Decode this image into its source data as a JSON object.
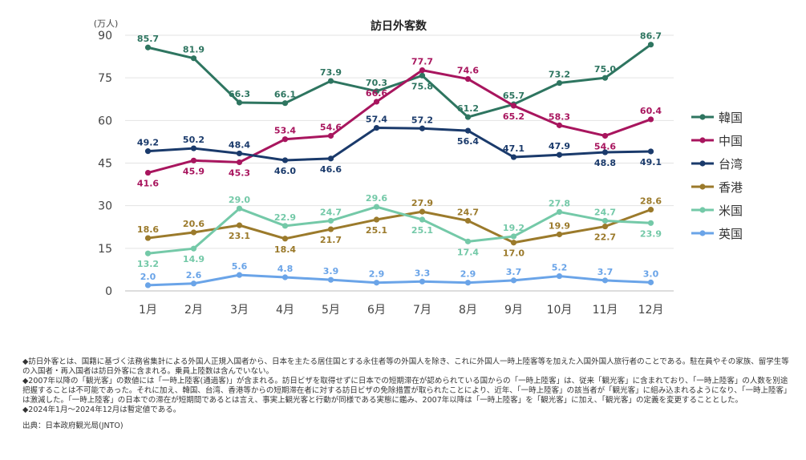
{
  "chart_data": {
    "type": "line",
    "title": "訪日外客数",
    "ylabel": "(万人)",
    "xlabel": "",
    "categories": [
      "1月",
      "2月",
      "3月",
      "4月",
      "5月",
      "6月",
      "7月",
      "8月",
      "9月",
      "10月",
      "11月",
      "12月"
    ],
    "ylim": [
      0,
      90
    ],
    "yticks": [
      0,
      15,
      30,
      45,
      60,
      75,
      90
    ],
    "grid": true,
    "legend_position": "right",
    "series": [
      {
        "name": "韓国",
        "color": "#2e7560",
        "values": [
          85.7,
          81.9,
          66.3,
          66.1,
          73.9,
          70.3,
          75.8,
          61.2,
          65.7,
          73.2,
          75.0,
          86.7
        ]
      },
      {
        "name": "中国",
        "color": "#a8155e",
        "values": [
          41.6,
          45.9,
          45.3,
          53.4,
          54.6,
          66.6,
          77.7,
          74.6,
          65.2,
          58.3,
          54.6,
          60.4
        ]
      },
      {
        "name": "台湾",
        "color": "#1a3a6b",
        "values": [
          49.2,
          50.2,
          48.4,
          46.0,
          46.6,
          57.4,
          57.2,
          56.4,
          47.1,
          47.9,
          48.8,
          49.1
        ]
      },
      {
        "name": "香港",
        "color": "#9b7a2b",
        "values": [
          18.6,
          20.6,
          23.1,
          18.4,
          21.7,
          25.1,
          27.9,
          24.7,
          17.0,
          19.9,
          22.7,
          28.6
        ]
      },
      {
        "name": "米国",
        "color": "#74c9a8",
        "values": [
          13.2,
          14.9,
          29.0,
          22.9,
          24.7,
          29.6,
          25.1,
          17.4,
          19.2,
          27.8,
          24.7,
          23.9
        ]
      },
      {
        "name": "英国",
        "color": "#6aa4e8",
        "values": [
          2.0,
          2.6,
          5.6,
          4.8,
          3.9,
          2.9,
          3.3,
          2.9,
          3.7,
          5.2,
          3.7,
          3.0
        ]
      }
    ]
  },
  "notes": [
    "◆訪日外客とは、国籍に基づく法務省集計による外国人正規入国者から、日本を主たる居住国とする永住者等の外国人を除き、これに外国人一時上陸客等を加えた入国外国人旅行者のことである。駐在員やその家族、留学生等の入国者・再入国者は訪日外客に含まれる。乗員上陸数は含んでいない。",
    "◆2007年以降の「観光客」の数値には「一時上陸客(通過客)」が含まれる。訪日ビザを取得せずに日本での短期滞在が認められている国からの「一時上陸客」は、従来「観光客」に含まれており、「一時上陸客」の人数を別途把握することは不可能であった。それに加え、韓国、台湾、香港等からの短期滞在者に対する訪日ビザの免除措置が取られたことにより、近年、「一時上陸客」の該当者が「観光客」に組み込まれるようになり、「一時上陸客」は激減した。「一時上陸客」の日本での滞在が短期間であるとは言え、事実上観光客と行動が同様である実態に鑑み、2007年以降は「一時上陸客」を「観光客」に加え、「観光客」の定義を変更することとした。",
    "◆2024年1月～2024年12月は暫定値である。"
  ],
  "source": "出典：日本政府観光局(JNTO)"
}
